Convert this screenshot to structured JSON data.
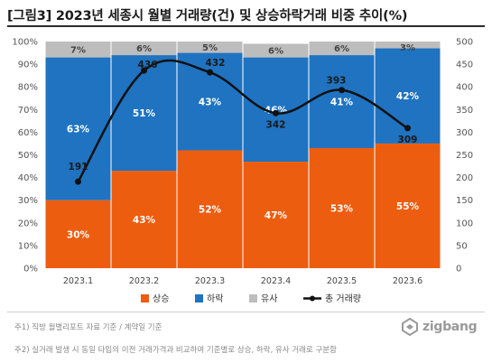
{
  "title": "[그림3] 2023년 세종시 월별 거래량(건) 및 상승하락거래 비중 추이(%)",
  "notes": [
    "주1) 직방 월별리포트 자료 기준 / 계약일 기준",
    "주2) 실거래 발생 시 동일 타입의 이전 거래가격과 비교하여 기준별로 상승, 하락, 유사 거래로 구분함"
  ],
  "logo": {
    "text": "zigbang",
    "icon": "zigbang-logo-icon"
  },
  "colors": {
    "rise": "#ed5d0f",
    "fall": "#1f73c1",
    "similar": "#bdbdbd",
    "line": "#111111"
  },
  "chart_data": {
    "type": "bar",
    "stacked": true,
    "categories": [
      "2023.1",
      "2023.2",
      "2023.3",
      "2023.4",
      "2023.5",
      "2023.6"
    ],
    "series": [
      {
        "name": "상승",
        "values": [
          30,
          43,
          52,
          47,
          53,
          55
        ]
      },
      {
        "name": "하락",
        "values": [
          63,
          51,
          43,
          46,
          41,
          42
        ]
      },
      {
        "name": "유사",
        "values": [
          7,
          6,
          5,
          6,
          6,
          3
        ]
      }
    ],
    "line_series": {
      "name": "총 거래량",
      "values": [
        191,
        436,
        432,
        342,
        393,
        309
      ],
      "axis": "right"
    },
    "ylim": [
      0,
      100
    ],
    "y_ticks": [
      "0%",
      "10%",
      "20%",
      "30%",
      "40%",
      "50%",
      "60%",
      "70%",
      "80%",
      "90%",
      "100%"
    ],
    "y2lim": [
      0,
      500
    ],
    "y2_ticks": [
      "0",
      "50",
      "100",
      "150",
      "200",
      "250",
      "300",
      "350",
      "400",
      "450",
      "500"
    ],
    "legend_position": "bottom",
    "grid": false
  }
}
